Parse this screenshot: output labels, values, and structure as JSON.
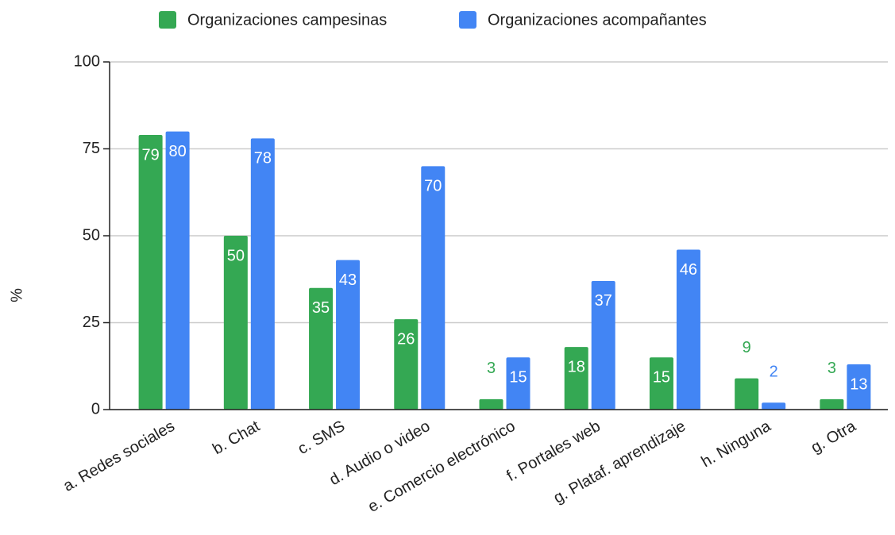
{
  "chart_data": {
    "type": "bar",
    "y_label": "%",
    "categories": [
      "a. Redes sociales",
      "b. Chat",
      "c. SMS",
      "d. Audio o video",
      "e. Comercio electrónico",
      "f. Portales web",
      "g. Plataf. aprendizaje",
      "h. Ninguna",
      "g. Otra"
    ],
    "series": [
      {
        "name": "Organizaciones campesinas",
        "color": "#34a853",
        "values": [
          79,
          50,
          35,
          26,
          3,
          18,
          15,
          9,
          3
        ]
      },
      {
        "name": "Organizaciones acompañantes",
        "color": "#4285f4",
        "values": [
          80,
          78,
          43,
          70,
          15,
          37,
          46,
          2,
          13
        ]
      }
    ],
    "ylim": [
      0,
      100
    ],
    "yticks": [
      0,
      25,
      50,
      75,
      100
    ],
    "grid": true,
    "legend": "top"
  }
}
